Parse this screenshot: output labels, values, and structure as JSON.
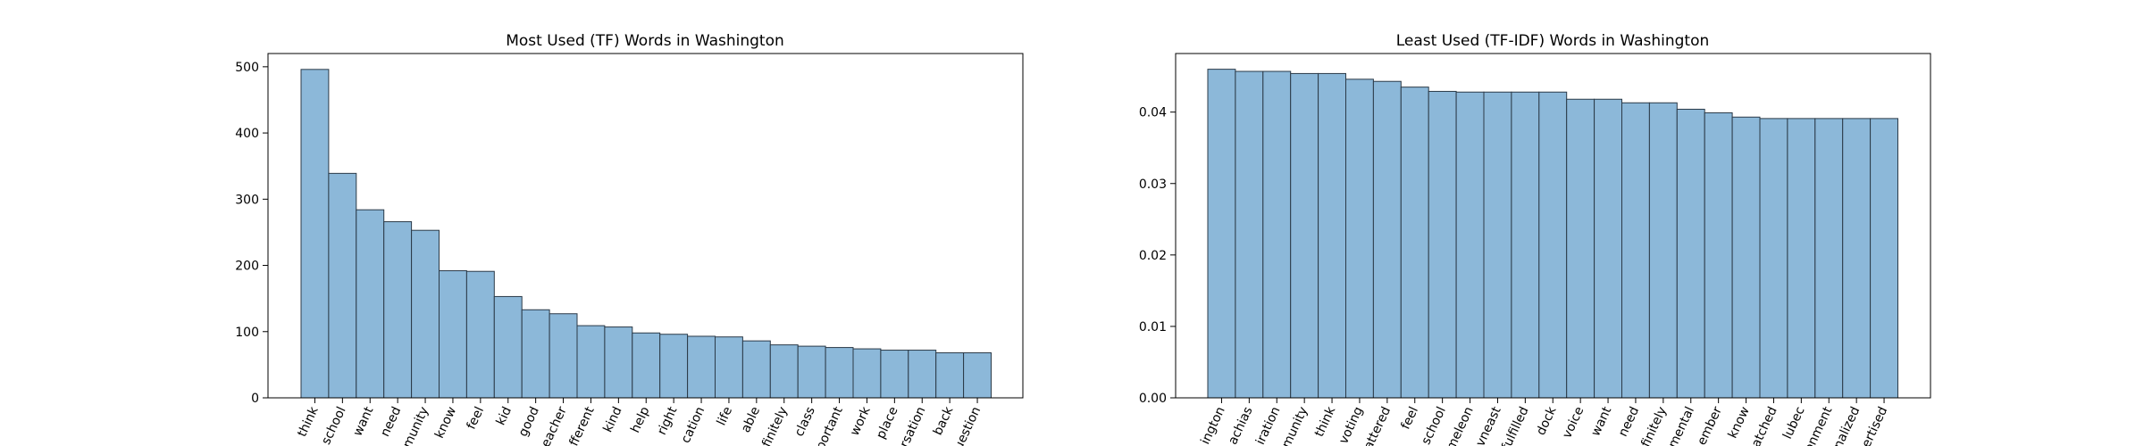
{
  "chart_data": [
    {
      "type": "bar",
      "title": "Most Used (TF) Words in Washington",
      "xlabel": "",
      "ylabel": "",
      "ylim": [
        0,
        520
      ],
      "yticks": [
        0,
        100,
        200,
        300,
        400,
        500
      ],
      "grid": false,
      "bar_color": "#8cb8d9",
      "edge_color": "#2b3a48",
      "categories": [
        "think",
        "school",
        "want",
        "need",
        "community",
        "know",
        "feel",
        "kid",
        "good",
        "teacher",
        "different",
        "kind",
        "help",
        "right",
        "education",
        "life",
        "able",
        "definitely",
        "class",
        "important",
        "work",
        "place",
        "conversation",
        "back",
        "question"
      ],
      "tick_labels": [
        "think",
        "school",
        "want",
        "need",
        "nmunity",
        "know",
        "feel",
        "kid",
        "good",
        "eacher",
        "fferent",
        "kind",
        "help",
        "right",
        "cation",
        "life",
        "able",
        "finitely",
        "class",
        "portant",
        "work",
        "place",
        "rsation",
        "back",
        "uestion"
      ],
      "values": [
        496,
        339,
        284,
        266,
        253,
        192,
        191,
        153,
        133,
        127,
        109,
        107,
        98,
        96,
        93,
        92,
        86,
        80,
        78,
        76,
        74,
        72,
        72,
        68,
        68
      ]
    },
    {
      "type": "bar",
      "title": "Least Used (TF-IDF) Words in Washington",
      "xlabel": "",
      "ylabel": "",
      "ylim": [
        0,
        0.0482
      ],
      "yticks": [
        0.0,
        0.01,
        0.02,
        0.03,
        0.04
      ],
      "ytick_labels": [
        "0.00",
        "0.01",
        "0.02",
        "0.03",
        "0.04"
      ],
      "grid": false,
      "bar_color": "#8cb8d9",
      "edge_color": "#2b3a48",
      "categories": [
        "washington",
        "machias",
        "aspiration",
        "community",
        "think",
        "voting",
        "scattered",
        "feel",
        "school",
        "chameleon",
        "downeast",
        "unfulfilled",
        "dock",
        "voice",
        "want",
        "need",
        "definitely",
        "fundamental",
        "remember",
        "know",
        "hatched",
        "lubec",
        "environment",
        "normalized",
        "advertised"
      ],
      "tick_labels": [
        "ington",
        "achias",
        "iration",
        "nmunity",
        "think",
        "voting",
        "attered",
        "feel",
        "school",
        "ameleon",
        "vneast",
        "fulfilled",
        "dock",
        "voice",
        "want",
        "need",
        "finitely",
        "mental",
        "ember",
        "know",
        "atched",
        "lubec",
        "ronment",
        "nalized",
        "ertised"
      ],
      "values": [
        0.046,
        0.0457,
        0.0457,
        0.0454,
        0.0454,
        0.0446,
        0.0443,
        0.0435,
        0.0429,
        0.0428,
        0.0428,
        0.0428,
        0.0428,
        0.0418,
        0.0418,
        0.0413,
        0.0413,
        0.0404,
        0.0399,
        0.0393,
        0.0391,
        0.0391,
        0.0391,
        0.0391,
        0.0391
      ]
    }
  ]
}
